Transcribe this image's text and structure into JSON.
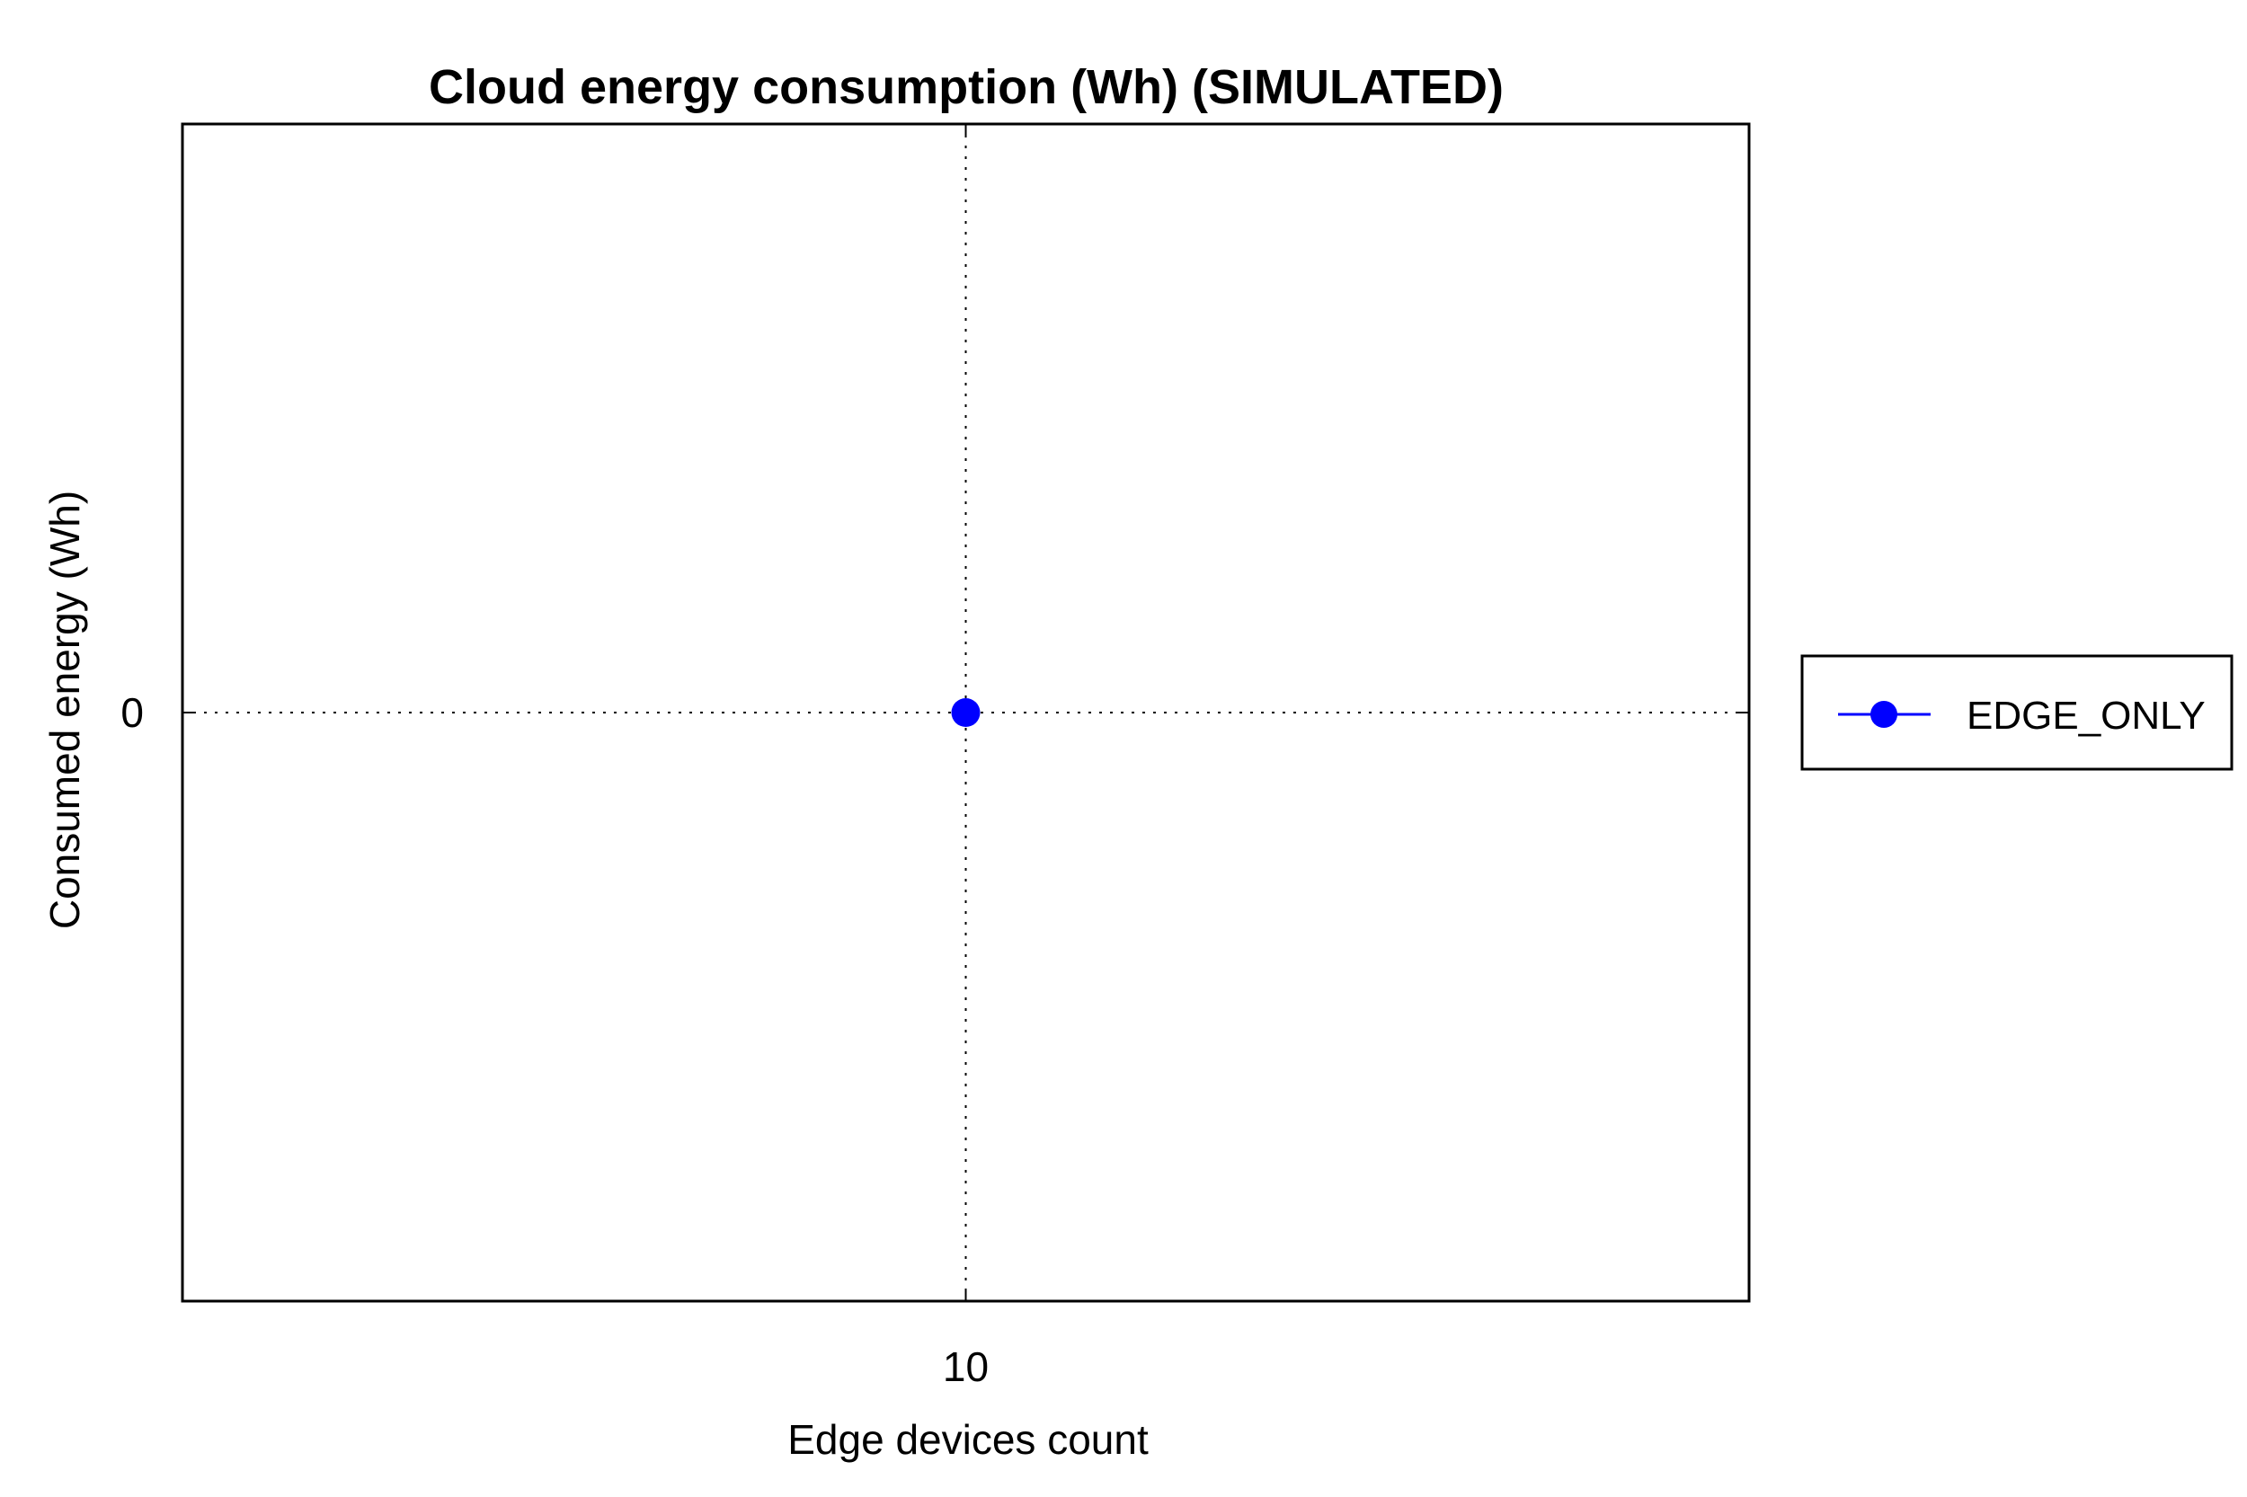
{
  "chart_data": {
    "type": "line",
    "title": "Cloud energy consumption (Wh) (SIMULATED)",
    "xlabel": "Edge devices count",
    "ylabel": "Consumed energy (Wh)",
    "x_ticks": [
      "10"
    ],
    "y_ticks": [
      "0"
    ],
    "xlim": [
      9,
      11
    ],
    "ylim": [
      -1,
      1
    ],
    "grid": true,
    "legend_position": "right",
    "series": [
      {
        "name": "EDGE_ONLY",
        "color": "#0000ff",
        "marker": "circle",
        "x": [
          10
        ],
        "y": [
          0
        ]
      }
    ]
  }
}
